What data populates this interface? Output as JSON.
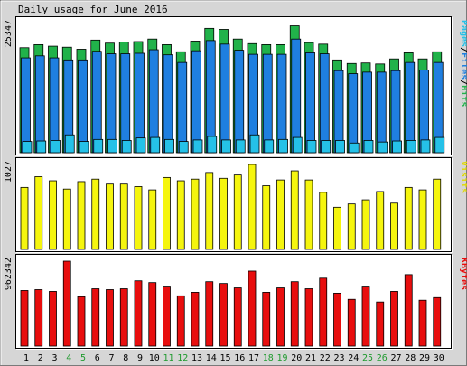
{
  "chart_data": {
    "type": "bar",
    "title": "Daily usage for June 2016",
    "categories": [
      "1",
      "2",
      "3",
      "4",
      "5",
      "6",
      "7",
      "8",
      "9",
      "10",
      "11",
      "12",
      "13",
      "14",
      "15",
      "16",
      "17",
      "18",
      "19",
      "20",
      "21",
      "22",
      "23",
      "24",
      "25",
      "26",
      "27",
      "28",
      "29",
      "30"
    ],
    "weekend_days": [
      "4",
      "5",
      "11",
      "12",
      "18",
      "19",
      "25",
      "26"
    ],
    "colors": {
      "hits": "#21b24a",
      "files": "#1f7fe0",
      "pages": "#25c1e8",
      "visits": "#f5f50e",
      "kbytes": "#e80e0e",
      "weekday_label": "#000000",
      "weekend_label": "#1f9a2e"
    },
    "panels": [
      {
        "name": "requests",
        "scale_label": "25347",
        "ymax": 25347,
        "legend": [
          {
            "text": "Pages",
            "color": "#25c1e8"
          },
          {
            "text": "/",
            "color": "#000000"
          },
          {
            "text": "Files",
            "color": "#1f7fe0"
          },
          {
            "text": "/",
            "color": "#000000"
          },
          {
            "text": "Hits",
            "color": "#21b24a"
          }
        ],
        "series": [
          {
            "name": "Hits",
            "values": [
              20600,
              21200,
              20900,
              20700,
              20300,
              22100,
              21500,
              21700,
              21800,
              22300,
              21200,
              19800,
              21900,
              24400,
              24200,
              22300,
              21400,
              21200,
              21200,
              24900,
              21600,
              21300,
              18200,
              17500,
              17600,
              17400,
              18400,
              19600,
              18400,
              19800
            ]
          },
          {
            "name": "Files",
            "values": [
              18600,
              19000,
              18600,
              18200,
              18200,
              19900,
              19400,
              19400,
              19500,
              20200,
              19200,
              17700,
              20000,
              22000,
              21300,
              20100,
              19300,
              19300,
              19300,
              22300,
              19600,
              19400,
              16100,
              15500,
              15800,
              15800,
              16100,
              17700,
              16200,
              17700
            ]
          },
          {
            "name": "Pages",
            "values": [
              2200,
              2300,
              2400,
              3500,
              2200,
              2600,
              2600,
              2400,
              2900,
              3000,
              2600,
              2200,
              2500,
              3200,
              2500,
              2500,
              3500,
              2500,
              2600,
              3000,
              2400,
              2400,
              2400,
              1900,
              2400,
              2100,
              2300,
              2400,
              2500,
              3000
            ]
          }
        ]
      },
      {
        "name": "visits",
        "scale_label": "1027",
        "ymax": 1027,
        "legend": [
          {
            "text": "Visits",
            "color": "#e0d800"
          }
        ],
        "series": [
          {
            "name": "Visits",
            "values": [
              750,
              880,
              830,
              730,
              820,
              850,
              790,
              790,
              760,
              720,
              870,
              830,
              850,
              930,
              860,
              900,
              1027,
              770,
              840,
              950,
              840,
              690,
              510,
              550,
              600,
              700,
              560,
              750,
              720,
              850
            ]
          }
        ]
      },
      {
        "name": "kbytes",
        "scale_label": "962342",
        "ymax": 962342,
        "legend": [
          {
            "text": "KBytes",
            "color": "#e80e0e"
          }
        ],
        "series": [
          {
            "name": "KBytes",
            "values": [
              630000,
              640000,
              620000,
              962342,
              560000,
              650000,
              640000,
              650000,
              740000,
              720000,
              670000,
              570000,
              610000,
              730000,
              710000,
              660000,
              850000,
              610000,
              660000,
              730000,
              650000,
              770000,
              600000,
              530000,
              670000,
              500000,
              620000,
              810000,
              520000,
              550000
            ]
          }
        ]
      }
    ]
  }
}
